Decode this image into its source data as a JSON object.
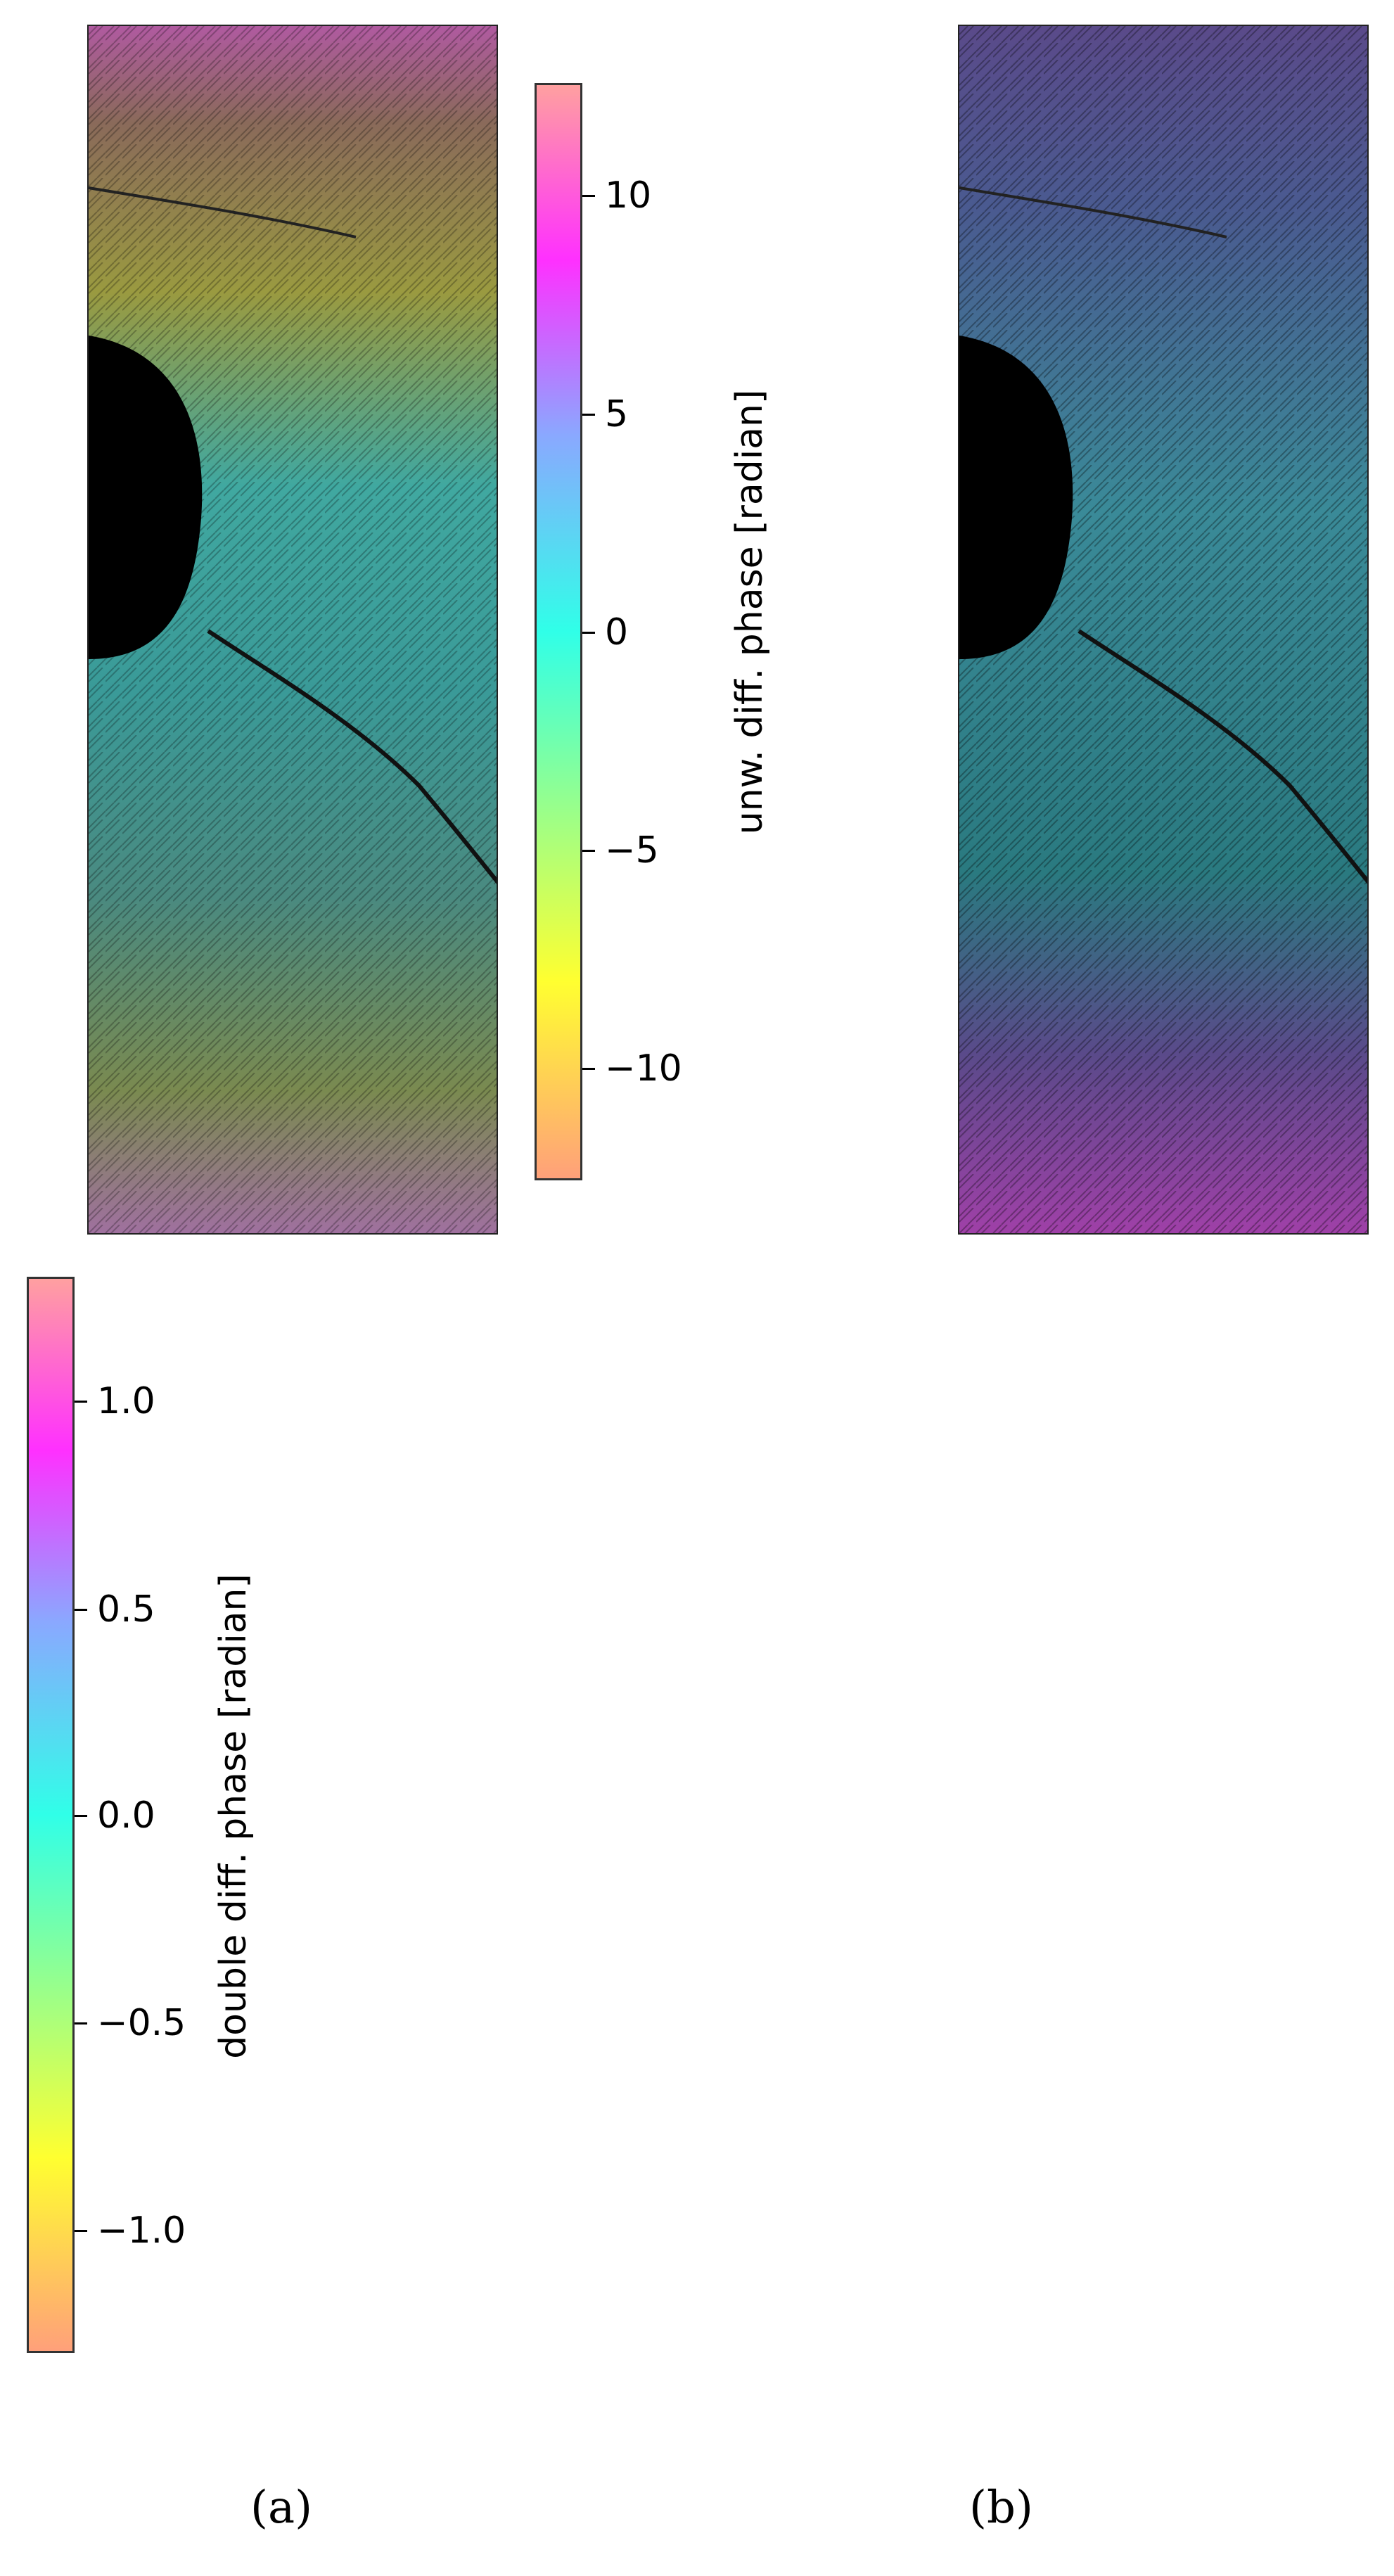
{
  "panels": [
    {
      "id": "a",
      "label": "(a)",
      "image": "unwrapped-differential-phase-map",
      "colorbar": {
        "label": "unw. diff. phase [radian]",
        "min": -12.5,
        "max": 12.5,
        "ticks": [
          {
            "value": 10,
            "text": "10"
          },
          {
            "value": 5,
            "text": "5"
          },
          {
            "value": 0,
            "text": "0"
          },
          {
            "value": -5,
            "text": "−5"
          },
          {
            "value": -10,
            "text": "−10"
          }
        ]
      }
    },
    {
      "id": "b",
      "label": "(b)",
      "image": "double-differential-phase-map",
      "colorbar": {
        "label": "double diff. phase [radian]",
        "min": -1.3,
        "max": 1.3,
        "ticks": [
          {
            "value": 1.0,
            "text": "1.0"
          },
          {
            "value": 0.5,
            "text": "0.5"
          },
          {
            "value": 0.0,
            "text": "0.0"
          },
          {
            "value": -0.5,
            "text": "−0.5"
          },
          {
            "value": -1.0,
            "text": "−1.0"
          }
        ]
      }
    }
  ],
  "colormap": [
    "#ffa07a",
    "#ffff30",
    "#30ffe8",
    "#8aa8ff",
    "#ff30ff",
    "#ffa0a0"
  ]
}
